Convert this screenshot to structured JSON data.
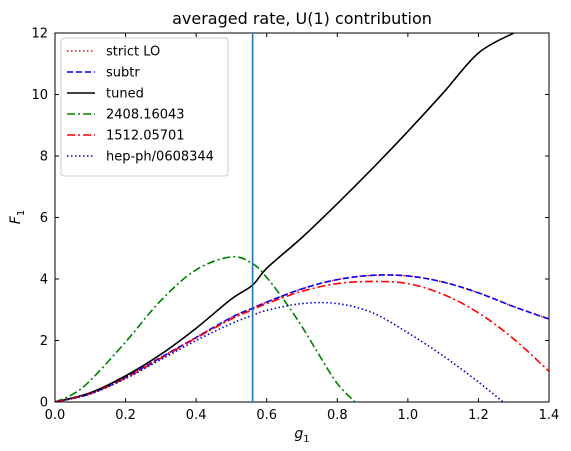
{
  "chart_data": {
    "type": "line",
    "title": "averaged rate, U(1) contribution",
    "xlabel": "g",
    "xlabel_sub": "1",
    "ylabel": "F",
    "ylabel_sub": "1",
    "xlim": [
      0,
      1.4
    ],
    "ylim": [
      0,
      12
    ],
    "xticks": [
      0,
      0.2,
      0.4,
      0.6,
      0.8,
      1.0,
      1.2,
      1.4
    ],
    "xtick_labels": [
      "0.0",
      "0.2",
      "0.4",
      "0.6",
      "0.8",
      "1.0",
      "1.2",
      "1.4"
    ],
    "yticks": [
      0,
      2,
      4,
      6,
      8,
      10,
      12
    ],
    "ytick_labels": [
      "0",
      "2",
      "4",
      "6",
      "8",
      "10",
      "12"
    ],
    "grid": false,
    "legend_position": "top-left",
    "vline": {
      "x": 0.56,
      "color": "#1f77b4"
    },
    "series": [
      {
        "name": "strict LO",
        "color": "#ff0000",
        "style": "dotted",
        "x": [
          0,
          0.1,
          0.2,
          0.3,
          0.4,
          0.5,
          0.56,
          0.6,
          0.7,
          0.8,
          0.9,
          1.0,
          1.1,
          1.2,
          1.3,
          1.4
        ],
        "y": [
          0,
          0.27,
          0.8,
          1.45,
          2.1,
          2.75,
          3.05,
          3.25,
          3.68,
          3.98,
          4.12,
          4.1,
          3.9,
          3.55,
          3.1,
          2.7
        ]
      },
      {
        "name": "subtr",
        "color": "#0000ff",
        "style": "dashed",
        "x": [
          0,
          0.1,
          0.2,
          0.3,
          0.4,
          0.5,
          0.56,
          0.6,
          0.7,
          0.8,
          0.9,
          1.0,
          1.1,
          1.2,
          1.3,
          1.4
        ],
        "y": [
          0,
          0.27,
          0.8,
          1.45,
          2.1,
          2.75,
          3.05,
          3.25,
          3.68,
          3.98,
          4.12,
          4.1,
          3.9,
          3.55,
          3.1,
          2.7
        ]
      },
      {
        "name": "tuned",
        "color": "#000000",
        "style": "solid",
        "x": [
          0,
          0.1,
          0.2,
          0.3,
          0.4,
          0.5,
          0.56,
          0.6,
          0.7,
          0.8,
          0.9,
          1.0,
          1.1,
          1.2,
          1.3
        ],
        "y": [
          0,
          0.3,
          0.85,
          1.55,
          2.4,
          3.35,
          3.8,
          4.35,
          5.35,
          6.45,
          7.6,
          8.8,
          10.05,
          11.35,
          12.0
        ]
      },
      {
        "name": "2408.16043",
        "color": "#008000",
        "style": "dashdot",
        "x": [
          0,
          0.05,
          0.1,
          0.2,
          0.3,
          0.4,
          0.5,
          0.56,
          0.6,
          0.65,
          0.7,
          0.75,
          0.8,
          0.85
        ],
        "y": [
          0,
          0.25,
          0.7,
          1.95,
          3.3,
          4.3,
          4.72,
          4.5,
          4.05,
          3.3,
          2.45,
          1.5,
          0.6,
          0
        ]
      },
      {
        "name": "1512.05701",
        "color": "#ff0000",
        "style": "dashdot",
        "x": [
          0,
          0.1,
          0.2,
          0.3,
          0.4,
          0.5,
          0.56,
          0.6,
          0.7,
          0.8,
          0.9,
          1.0,
          1.1,
          1.2,
          1.3,
          1.4
        ],
        "y": [
          0,
          0.27,
          0.78,
          1.42,
          2.08,
          2.7,
          3.0,
          3.2,
          3.6,
          3.85,
          3.92,
          3.85,
          3.5,
          2.9,
          2.05,
          1.0
        ]
      },
      {
        "name": "hep-ph/0608344",
        "color": "#0000cc",
        "style": "dotted",
        "x": [
          0,
          0.1,
          0.2,
          0.3,
          0.4,
          0.5,
          0.56,
          0.6,
          0.7,
          0.8,
          0.9,
          1.0,
          1.1,
          1.2,
          1.27
        ],
        "y": [
          0,
          0.26,
          0.76,
          1.38,
          2.0,
          2.55,
          2.82,
          2.98,
          3.2,
          3.2,
          2.9,
          2.25,
          1.5,
          0.65,
          0
        ]
      }
    ]
  }
}
